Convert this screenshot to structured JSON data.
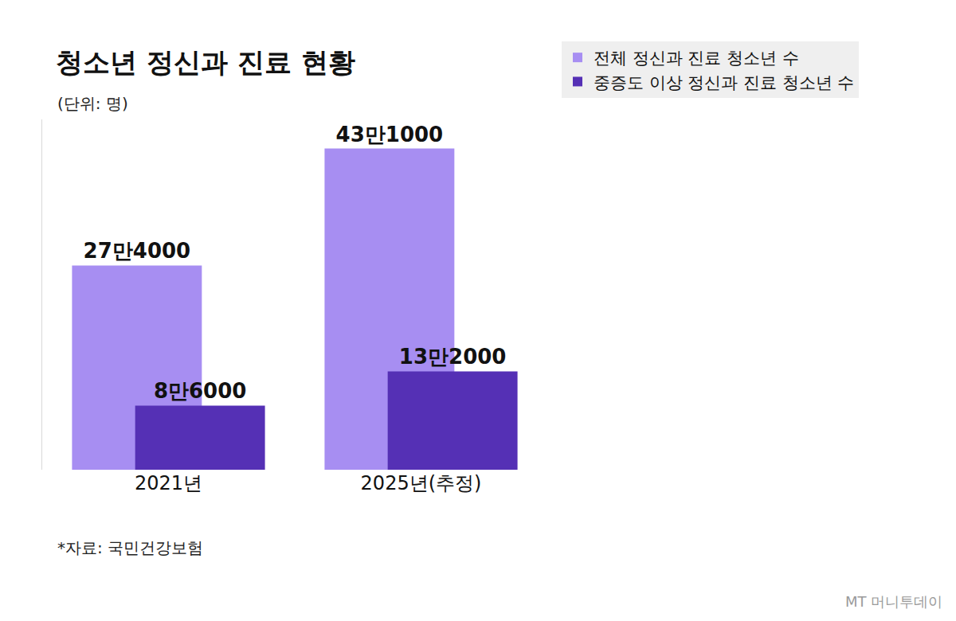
{
  "chart_data": {
    "type": "bar",
    "title": "청소년 정신과 진료 현황",
    "subtitle": "(단위: 명)",
    "source": "*자료: 국민건강보험",
    "brand": "MT 머니투데이",
    "categories": [
      "2021년",
      "2025년(추정)"
    ],
    "series": [
      {
        "name": "전체 정신과 진료 청소년 수",
        "color": "#a78ef2",
        "values": [
          274000,
          431000
        ],
        "value_labels": [
          "27만4000",
          "43만1000"
        ]
      },
      {
        "name": "중증도 이상 정신과 진료 청소년 수",
        "color": "#5530b5",
        "values": [
          86000,
          132000
        ],
        "value_labels": [
          "8만6000",
          "13만2000"
        ]
      }
    ],
    "ylim": [
      0,
      470000
    ],
    "yticks": [],
    "grid": false,
    "legend": "top-right",
    "data_labels": true,
    "tick_labels": "x"
  }
}
